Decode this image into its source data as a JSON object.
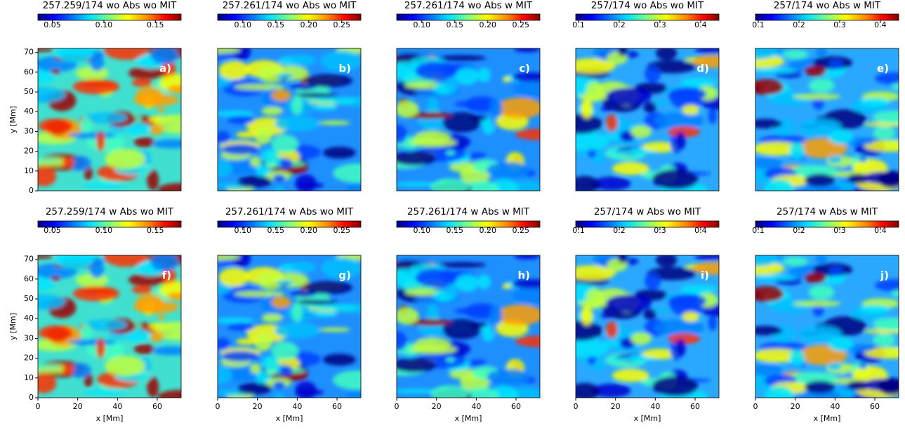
{
  "chart_data": [
    {
      "type": "image",
      "title": "257.259/174 wo Abs wo MIT",
      "label": "a)",
      "colorbar": {
        "lim": [
          0.036,
          0.175
        ],
        "ticks": [
          0.05,
          {
            "value": 0.1,
            "label": "0.10"
          },
          0.15
        ]
      },
      "ylim": [
        0,
        72
      ],
      "yticks": [
        0,
        10,
        20,
        30,
        40,
        50,
        60,
        70
      ],
      "ylabel": "y [Mm]"
    },
    {
      "type": "image",
      "title": "257.261/174 wo Abs wo MIT",
      "label": "b)",
      "colorbar": {
        "lim": [
          0.062,
          0.279
        ],
        "ticks": [
          {
            "value": 0.1,
            "label": "0.10"
          },
          0.15,
          {
            "value": 0.2,
            "label": "0.20"
          },
          0.25
        ]
      }
    },
    {
      "type": "image",
      "title": "257.261/174 wo Abs w MIT",
      "label": "c)",
      "colorbar": {
        "lim": [
          0.062,
          0.279
        ],
        "ticks": [
          {
            "value": 0.1,
            "label": "0.10"
          },
          0.15,
          {
            "value": 0.2,
            "label": "0.20"
          },
          0.25
        ]
      }
    },
    {
      "type": "image",
      "title": "257/174 wo Abs wo MIT",
      "label": "d)",
      "colorbar": {
        "lim": [
          0.093,
          0.445
        ],
        "ticks": [
          0.1,
          0.2,
          0.3,
          0.4
        ]
      }
    },
    {
      "type": "image",
      "title": "257/174 wo Abs w MIT",
      "label": "e)",
      "colorbar": {
        "lim": [
          0.093,
          0.445
        ],
        "ticks": [
          0.1,
          0.2,
          0.3,
          0.4
        ]
      }
    },
    {
      "type": "image",
      "title": "257.259/174 w Abs wo MIT",
      "label": "f)",
      "colorbar": {
        "lim": [
          0.036,
          0.175
        ],
        "ticks": [
          0.05,
          {
            "value": 0.1,
            "label": "0.10"
          },
          0.15
        ]
      },
      "ylim": [
        0,
        72
      ],
      "yticks": [
        0,
        10,
        20,
        30,
        40,
        50,
        60,
        70
      ],
      "ylabel": "y [Mm]",
      "xlim": [
        0,
        72
      ],
      "xticks": [
        0,
        20,
        40,
        60
      ],
      "xlabel": "x [Mm]"
    },
    {
      "type": "image",
      "title": "257.261/174 w Abs wo MIT",
      "label": "g)",
      "colorbar": {
        "lim": [
          0.062,
          0.279
        ],
        "ticks": [
          {
            "value": 0.1,
            "label": "0.10"
          },
          0.15,
          {
            "value": 0.2,
            "label": "0.20"
          },
          0.25
        ]
      },
      "xlim": [
        0,
        72
      ],
      "xticks": [
        0,
        20,
        40,
        60
      ],
      "xlabel": "x [Mm]"
    },
    {
      "type": "image",
      "title": "257.261/174 w Abs w MIT",
      "label": "h)",
      "colorbar": {
        "lim": [
          0.062,
          0.279
        ],
        "ticks": [
          {
            "value": 0.1,
            "label": "0.10"
          },
          0.15,
          {
            "value": 0.2,
            "label": "0.20"
          },
          0.25
        ]
      },
      "xlim": [
        0,
        72
      ],
      "xticks": [
        0,
        20,
        40,
        60
      ],
      "xlabel": "x [Mm]"
    },
    {
      "type": "image",
      "title": "257/174 w Abs wo MIT",
      "label": "i)",
      "colorbar": {
        "lim": [
          0.093,
          0.445
        ],
        "ticks": [
          0.1,
          0.2,
          0.3,
          0.4
        ]
      },
      "xlim": [
        0,
        72
      ],
      "xticks": [
        0,
        20,
        40,
        60
      ],
      "xlabel": "x [Mm]"
    },
    {
      "type": "image",
      "title": "257/174 w Abs w MIT",
      "label": "j)",
      "colorbar": {
        "lim": [
          0.093,
          0.445
        ],
        "ticks": [
          0.1,
          0.2,
          0.3,
          0.4
        ]
      },
      "xlim": [
        0,
        72
      ],
      "xticks": [
        0,
        20,
        40,
        60
      ],
      "xlabel": "x [Mm]"
    }
  ]
}
